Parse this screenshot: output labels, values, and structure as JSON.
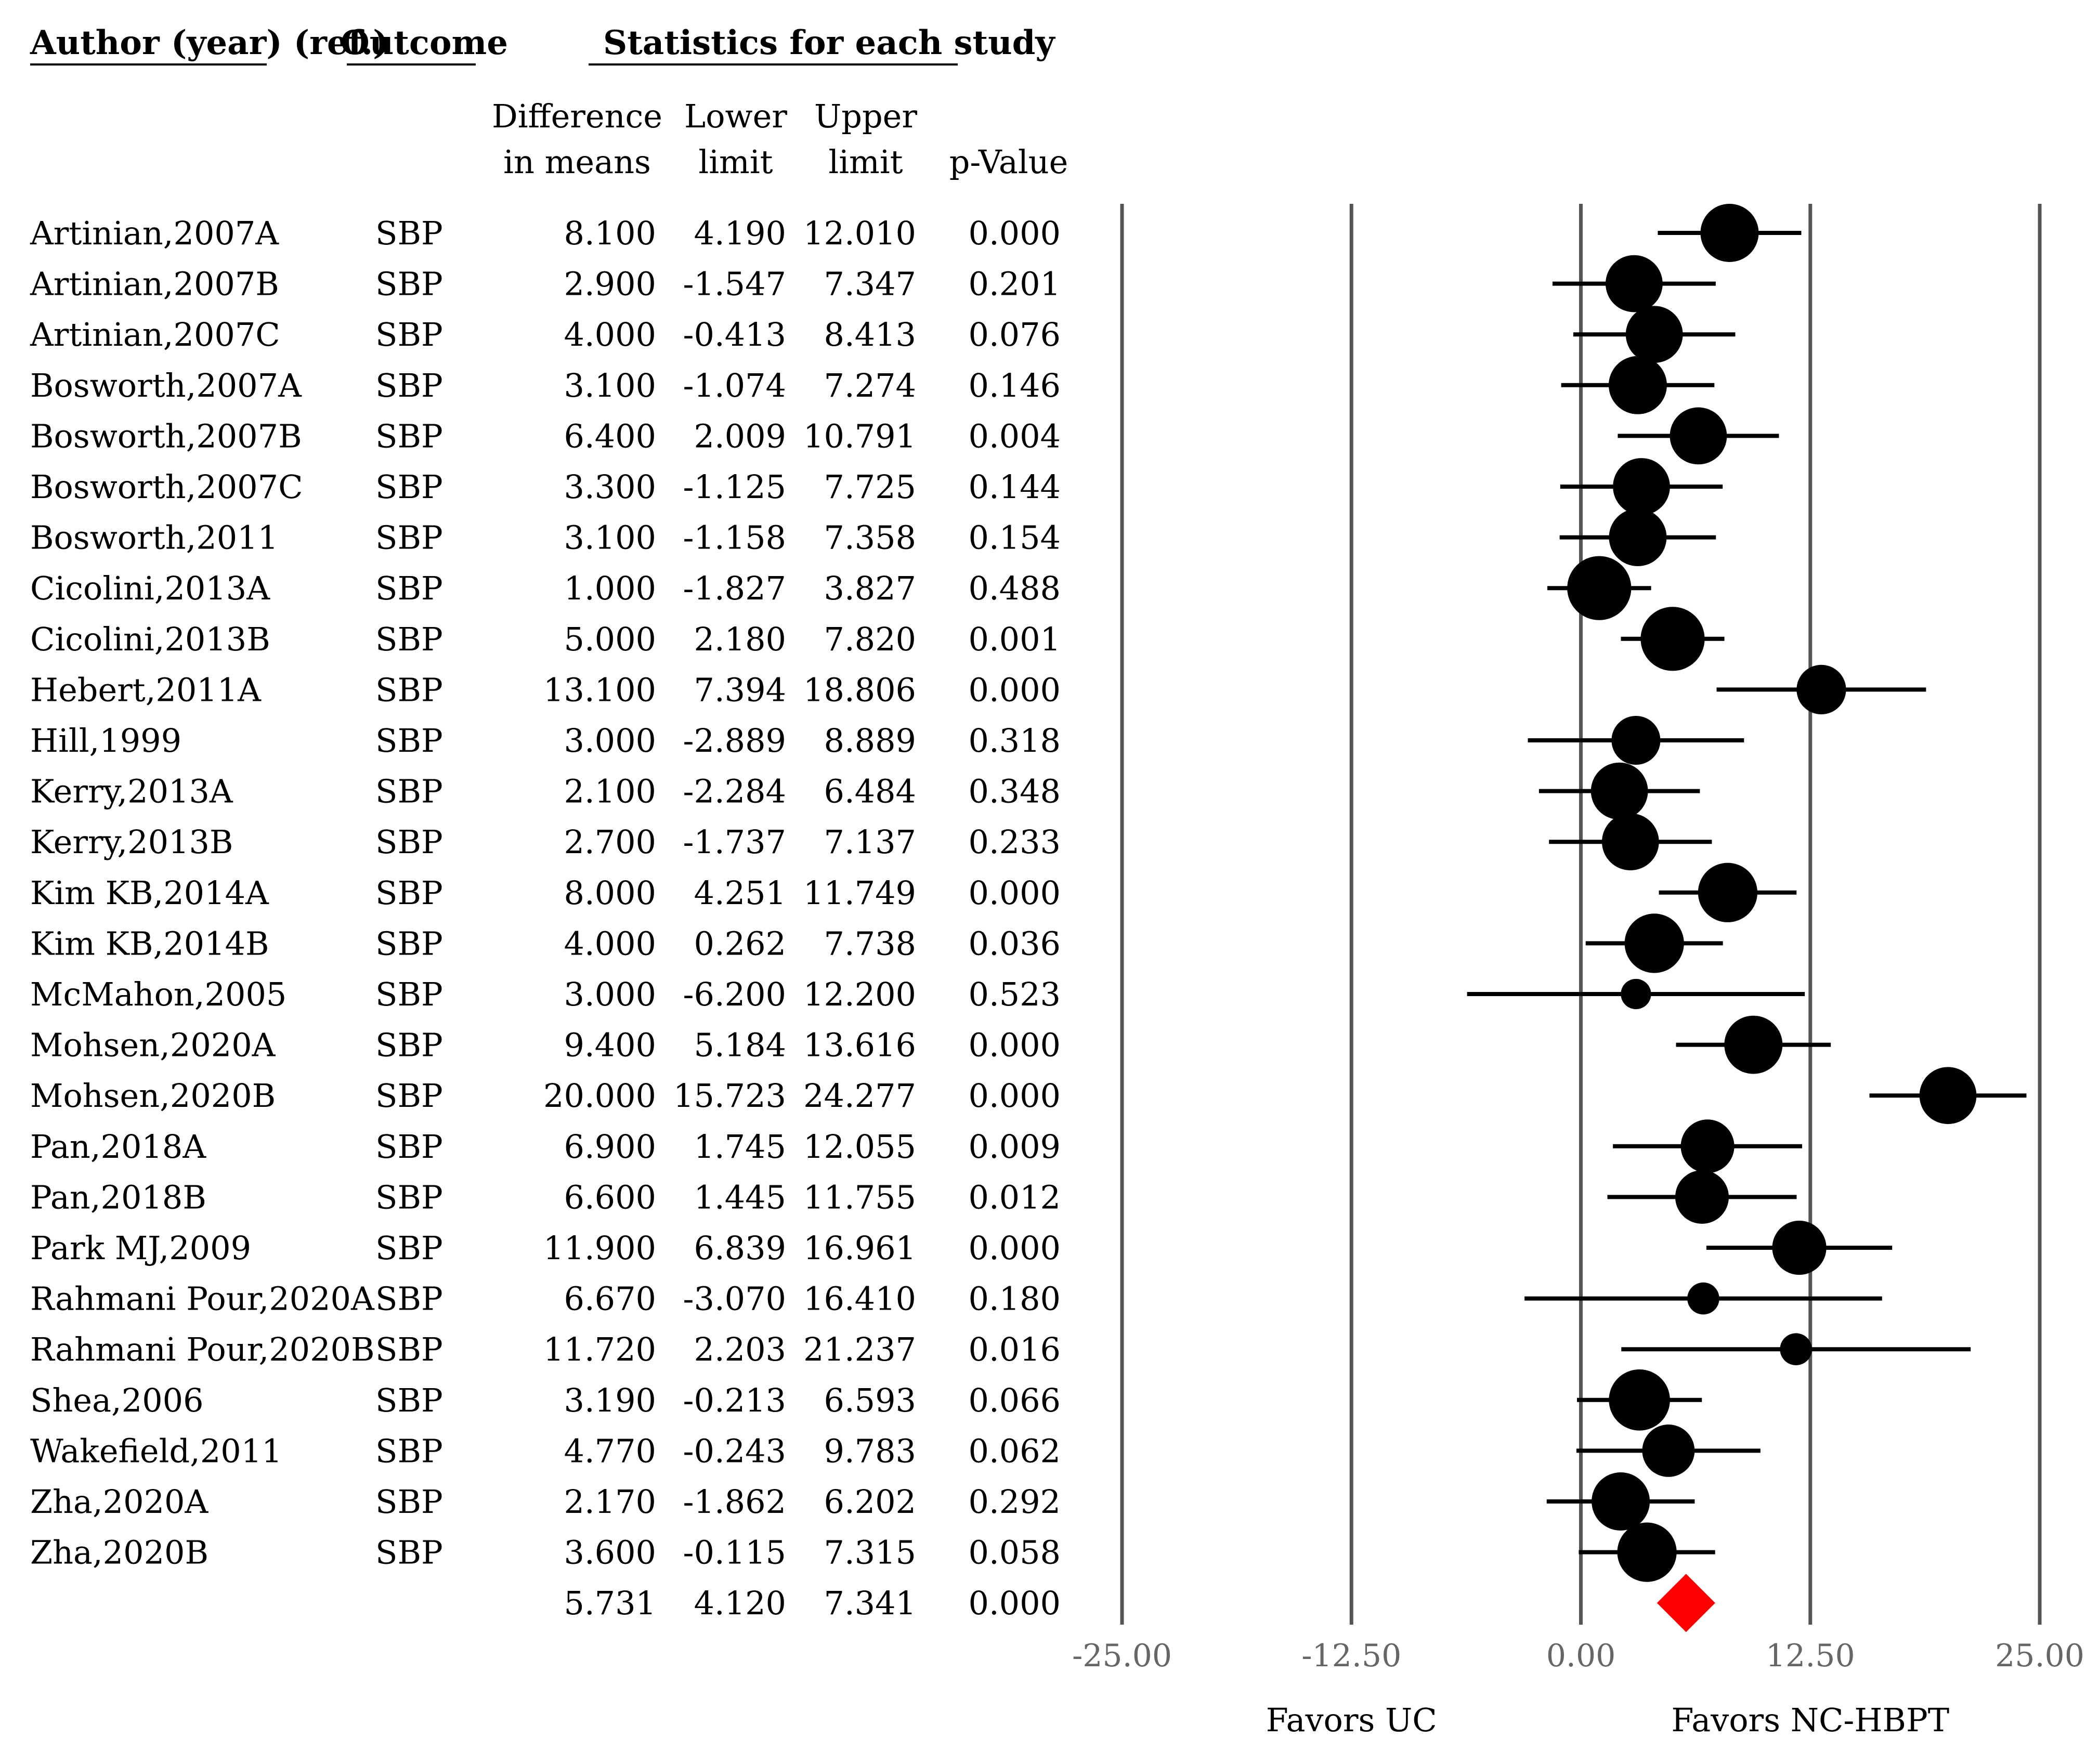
{
  "headers": {
    "author": "Author (year) (ref.)",
    "outcome": "Outcome",
    "statistics": "Statistics for each study",
    "difference_line1": "Difference",
    "difference_line2": "in means",
    "lower_line1": "Lower",
    "lower_line2": "limit",
    "upper_line1": "Upper",
    "upper_line2": "limit",
    "pvalue": "p-Value"
  },
  "favors": {
    "left": "Favors UC",
    "right": "Favors NC-HBPT"
  },
  "colors": {
    "marker": "#000000",
    "summary": "#ff0000",
    "gridline": "#555555",
    "tick_text": "#666666"
  },
  "chart_data": {
    "type": "forest",
    "x_ticks": [
      -25,
      -12.5,
      0,
      12.5,
      25
    ],
    "x_tick_labels": [
      "-25.00",
      "-12.50",
      "0.00",
      "12.50",
      "25.00"
    ],
    "xlim": [
      -25,
      25
    ],
    "studies": [
      {
        "author": "Artinian,2007A",
        "outcome": "SBP",
        "diff": "8.100",
        "lower": "4.190",
        "upper": "12.010",
        "p": "0.000",
        "weight": 1.0
      },
      {
        "author": "Artinian,2007B",
        "outcome": "SBP",
        "diff": "2.900",
        "lower": "-1.547",
        "upper": "7.347",
        "p": "0.201",
        "weight": 0.98
      },
      {
        "author": "Artinian,2007C",
        "outcome": "SBP",
        "diff": "4.000",
        "lower": "-0.413",
        "upper": "8.413",
        "p": "0.076",
        "weight": 0.98
      },
      {
        "author": "Bosworth,2007A",
        "outcome": "SBP",
        "diff": "3.100",
        "lower": "-1.074",
        "upper": "7.274",
        "p": "0.146",
        "weight": 1.0
      },
      {
        "author": "Bosworth,2007B",
        "outcome": "SBP",
        "diff": "6.400",
        "lower": "2.009",
        "upper": "10.791",
        "p": "0.004",
        "weight": 0.98
      },
      {
        "author": "Bosworth,2007C",
        "outcome": "SBP",
        "diff": "3.300",
        "lower": "-1.125",
        "upper": "7.725",
        "p": "0.144",
        "weight": 0.98
      },
      {
        "author": "Bosworth,2011",
        "outcome": "SBP",
        "diff": "3.100",
        "lower": "-1.158",
        "upper": "7.358",
        "p": "0.154",
        "weight": 0.99
      },
      {
        "author": "Cicolini,2013A",
        "outcome": "SBP",
        "diff": "1.000",
        "lower": "-1.827",
        "upper": "3.827",
        "p": "0.488",
        "weight": 1.1
      },
      {
        "author": "Cicolini,2013B",
        "outcome": "SBP",
        "diff": "5.000",
        "lower": "2.180",
        "upper": "7.820",
        "p": "0.001",
        "weight": 1.1
      },
      {
        "author": "Hebert,2011A",
        "outcome": "SBP",
        "diff": "13.100",
        "lower": "7.394",
        "upper": "18.806",
        "p": "0.000",
        "weight": 0.85
      },
      {
        "author": "Hill,1999",
        "outcome": "SBP",
        "diff": "3.000",
        "lower": "-2.889",
        "upper": "8.889",
        "p": "0.318",
        "weight": 0.84
      },
      {
        "author": "Kerry,2013A",
        "outcome": "SBP",
        "diff": "2.100",
        "lower": "-2.284",
        "upper": "6.484",
        "p": "0.348",
        "weight": 0.98
      },
      {
        "author": "Kerry,2013B",
        "outcome": "SBP",
        "diff": "2.700",
        "lower": "-1.737",
        "upper": "7.137",
        "p": "0.233",
        "weight": 0.98
      },
      {
        "author": "Kim KB,2014A",
        "outcome": "SBP",
        "diff": "8.000",
        "lower": "4.251",
        "upper": "11.749",
        "p": "0.000",
        "weight": 1.02
      },
      {
        "author": "Kim KB,2014B",
        "outcome": "SBP",
        "diff": "4.000",
        "lower": "0.262",
        "upper": "7.738",
        "p": "0.036",
        "weight": 1.02
      },
      {
        "author": "McMahon,2005",
        "outcome": "SBP",
        "diff": "3.000",
        "lower": "-6.200",
        "upper": "12.200",
        "p": "0.523",
        "weight": 0.52
      },
      {
        "author": "Mohsen,2020A",
        "outcome": "SBP",
        "diff": "9.400",
        "lower": "5.184",
        "upper": "13.616",
        "p": "0.000",
        "weight": 1.0
      },
      {
        "author": "Mohsen,2020B",
        "outcome": "SBP",
        "diff": "20.000",
        "lower": "15.723",
        "upper": "24.277",
        "p": "0.000",
        "weight": 0.98
      },
      {
        "author": "Pan,2018A",
        "outcome": "SBP",
        "diff": "6.900",
        "lower": "1.745",
        "upper": "12.055",
        "p": "0.009",
        "weight": 0.92
      },
      {
        "author": "Pan,2018B",
        "outcome": "SBP",
        "diff": "6.600",
        "lower": "1.445",
        "upper": "11.755",
        "p": "0.012",
        "weight": 0.92
      },
      {
        "author": "Park MJ,2009",
        "outcome": "SBP",
        "diff": "11.900",
        "lower": "6.839",
        "upper": "16.961",
        "p": "0.000",
        "weight": 0.93
      },
      {
        "author": "Rahmani Pour,2020A",
        "outcome": "SBP",
        "diff": "6.670",
        "lower": "-3.070",
        "upper": "16.410",
        "p": "0.180",
        "weight": 0.55
      },
      {
        "author": "Rahmani Pour,2020B",
        "outcome": "SBP",
        "diff": "11.720",
        "lower": "2.203",
        "upper": "21.237",
        "p": "0.016",
        "weight": 0.55
      },
      {
        "author": "Shea,2006",
        "outcome": "SBP",
        "diff": "3.190",
        "lower": "-0.213",
        "upper": "6.593",
        "p": "0.066",
        "weight": 1.05
      },
      {
        "author": "Wakefield,2011",
        "outcome": "SBP",
        "diff": "4.770",
        "lower": "-0.243",
        "upper": "9.783",
        "p": "0.062",
        "weight": 0.9
      },
      {
        "author": "Zha,2020A",
        "outcome": "SBP",
        "diff": "2.170",
        "lower": "-1.862",
        "upper": "6.202",
        "p": "0.292",
        "weight": 1.0
      },
      {
        "author": "Zha,2020B",
        "outcome": "SBP",
        "diff": "3.600",
        "lower": "-0.115",
        "upper": "7.315",
        "p": "0.058",
        "weight": 1.02
      }
    ],
    "summary": {
      "diff": "5.731",
      "lower": "4.120",
      "upper": "7.341",
      "p": "0.000"
    }
  }
}
